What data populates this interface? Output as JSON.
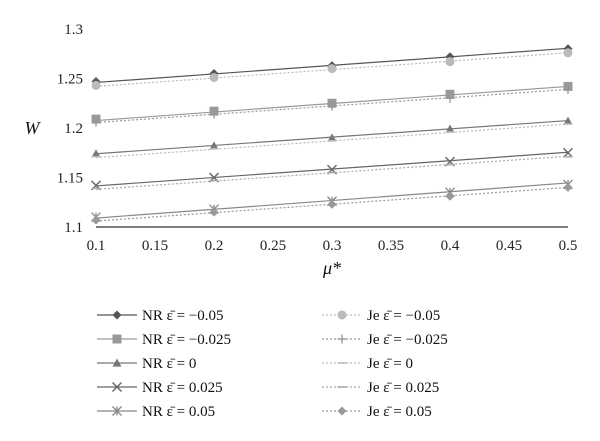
{
  "chart_data": {
    "type": "line",
    "xlabel": "μ*",
    "ylabel": "W",
    "xlim": [
      0.1,
      0.5
    ],
    "ylim": [
      1.1,
      1.3
    ],
    "x_ticks": [
      "0.1",
      "0.15",
      "0.2",
      "0.25",
      "0.3",
      "0.35",
      "0.4",
      "0.45",
      "0.5"
    ],
    "y_ticks": [
      "1.1",
      "1.15",
      "1.2",
      "1.25",
      "1.3"
    ],
    "grid": false,
    "legend_position": "bottom",
    "x": [
      0.1,
      0.2,
      0.3,
      0.4,
      0.5
    ],
    "series": [
      {
        "name": "NR ε̄ = −0.05",
        "color": "#555555",
        "marker": "diamond",
        "line": "solid",
        "points": [
          1.247,
          1.255,
          1.263,
          1.272,
          1.28
        ],
        "fit": [
          1.246,
          1.2805
        ]
      },
      {
        "name": "NR ε̄ = −0.025",
        "color": "#999999",
        "marker": "square",
        "line": "solid",
        "points": [
          1.209,
          1.217,
          1.225,
          1.234,
          1.242
        ],
        "fit": [
          1.2075,
          1.242
        ]
      },
      {
        "name": "NR ε̄ = 0",
        "color": "#777777",
        "marker": "triangle",
        "line": "solid",
        "points": [
          1.174,
          1.182,
          1.19,
          1.199,
          1.207
        ],
        "fit": [
          1.174,
          1.2075
        ]
      },
      {
        "name": "NR ε̄ = 0.025",
        "color": "#666666",
        "marker": "x",
        "line": "solid",
        "points": [
          1.142,
          1.15,
          1.158,
          1.166,
          1.175
        ],
        "fit": [
          1.1415,
          1.1755
        ]
      },
      {
        "name": "NR ε̄ = 0.05",
        "color": "#888888",
        "marker": "star",
        "line": "solid",
        "points": [
          1.11,
          1.118,
          1.126,
          1.135,
          1.143
        ],
        "fit": [
          1.109,
          1.1445
        ]
      },
      {
        "name": "Je ε̄ = −0.05",
        "color": "#bbbbbb",
        "marker": "circle",
        "line": "dotted",
        "points": [
          1.243,
          1.251,
          1.26,
          1.267,
          1.276
        ],
        "fit": [
          1.242,
          1.276
        ]
      },
      {
        "name": "Je ε̄ = −0.025",
        "color": "#999999",
        "marker": "plus",
        "line": "dotted",
        "points": [
          1.206,
          1.214,
          1.222,
          1.23,
          1.239
        ],
        "fit": [
          1.2055,
          1.239
        ]
      },
      {
        "name": "Je ε̄ = 0",
        "color": "#bbbbbb",
        "marker": "dash",
        "line": "dotted",
        "points": [
          1.171,
          1.179,
          1.187,
          1.196,
          1.204
        ],
        "fit": [
          1.17,
          1.204
        ]
      },
      {
        "name": "Je ε̄ = 0.025",
        "color": "#aaaaaa",
        "marker": "dash",
        "line": "dotted",
        "points": [
          1.139,
          1.147,
          1.155,
          1.163,
          1.171
        ],
        "fit": [
          1.138,
          1.1715
        ]
      },
      {
        "name": "Je ε̄ = 0.05",
        "color": "#999999",
        "marker": "diamond",
        "line": "dotted",
        "points": [
          1.107,
          1.115,
          1.123,
          1.131,
          1.14
        ],
        "fit": [
          1.106,
          1.14
        ]
      }
    ]
  }
}
